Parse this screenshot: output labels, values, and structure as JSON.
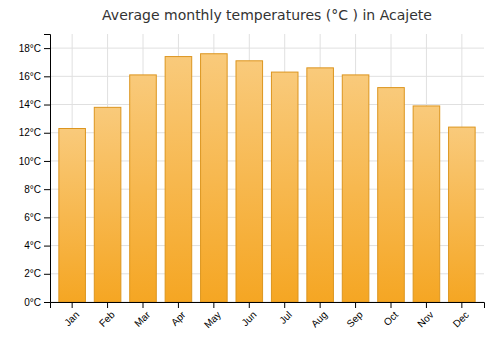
{
  "chart_data": {
    "type": "bar",
    "title": "Average monthly temperatures (°C ) in Acajete",
    "categories": [
      "Jan",
      "Feb",
      "Mar",
      "Apr",
      "May",
      "Jun",
      "Jul",
      "Aug",
      "Sep",
      "Oct",
      "Nov",
      "Dec"
    ],
    "values": [
      12.3,
      13.8,
      16.1,
      17.4,
      17.6,
      17.1,
      16.3,
      16.6,
      16.1,
      15.2,
      13.9,
      12.4
    ],
    "color": "#F5A623",
    "ylim": [
      0,
      19
    ],
    "yticks": [
      {
        "value": 0,
        "label": "0°C"
      },
      {
        "value": 2,
        "label": "2°C"
      },
      {
        "value": 4,
        "label": "4°C"
      },
      {
        "value": 6,
        "label": "6°C"
      },
      {
        "value": 8,
        "label": "8°C"
      },
      {
        "value": 10,
        "label": "10°C"
      },
      {
        "value": 12,
        "label": "12°C"
      },
      {
        "value": 14,
        "label": "14°C"
      },
      {
        "value": 16,
        "label": "16°C"
      },
      {
        "value": 18,
        "label": "18°C"
      }
    ],
    "grid": true
  }
}
